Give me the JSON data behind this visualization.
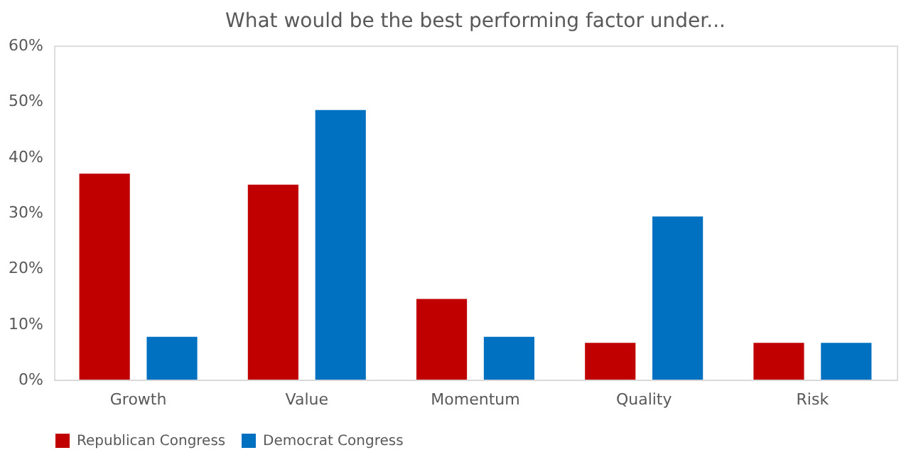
{
  "chart_data": {
    "type": "bar",
    "title": "What would be the best performing factor under...",
    "categories": [
      "Growth",
      "Value",
      "Momentum",
      "Quality",
      "Risk"
    ],
    "series": [
      {
        "name": "Republican Congress",
        "color": "#c00000",
        "values": [
          37,
          35,
          14.5,
          6.6,
          6.6
        ]
      },
      {
        "name": "Democrat Congress",
        "color": "#0070c0",
        "values": [
          7.7,
          48.4,
          7.7,
          29.3,
          6.6
        ]
      }
    ],
    "ylim": [
      0,
      60
    ],
    "yticks": [
      {
        "value": 0,
        "label": "0%"
      },
      {
        "value": 10,
        "label": "10%"
      },
      {
        "value": 20,
        "label": "20%"
      },
      {
        "value": 30,
        "label": "30%"
      },
      {
        "value": 40,
        "label": "40%"
      },
      {
        "value": 50,
        "label": "50%"
      },
      {
        "value": 60,
        "label": "60%"
      }
    ],
    "grid": false,
    "legend": "bottom"
  }
}
